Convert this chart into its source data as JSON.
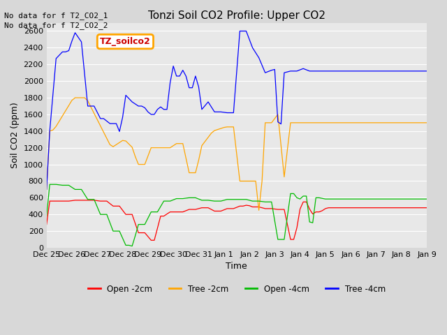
{
  "title": "Tonzi Soil CO2 Profile: Upper CO2",
  "ylabel": "Soil CO2 (ppm)",
  "xlabel": "Time",
  "annotations": [
    "No data for f T2_CO2_1",
    "No data for f T2_CO2_2"
  ],
  "legend_label": "TZ_soilco2",
  "legend_entries": [
    "Open -2cm",
    "Tree -2cm",
    "Open -4cm",
    "Tree -4cm"
  ],
  "legend_colors": [
    "#ff0000",
    "#ffa500",
    "#00bb00",
    "#0000ff"
  ],
  "ylim": [
    0,
    2700
  ],
  "yticks": [
    0,
    200,
    400,
    600,
    800,
    1000,
    1200,
    1400,
    1600,
    1800,
    2000,
    2200,
    2400,
    2600
  ],
  "background_color": "#d8d8d8",
  "plot_bg_color": "#e8e8e8",
  "grid_color": "#ffffff",
  "title_fontsize": 11,
  "label_fontsize": 9,
  "tick_fontsize": 8,
  "annot_fontsize": 8
}
